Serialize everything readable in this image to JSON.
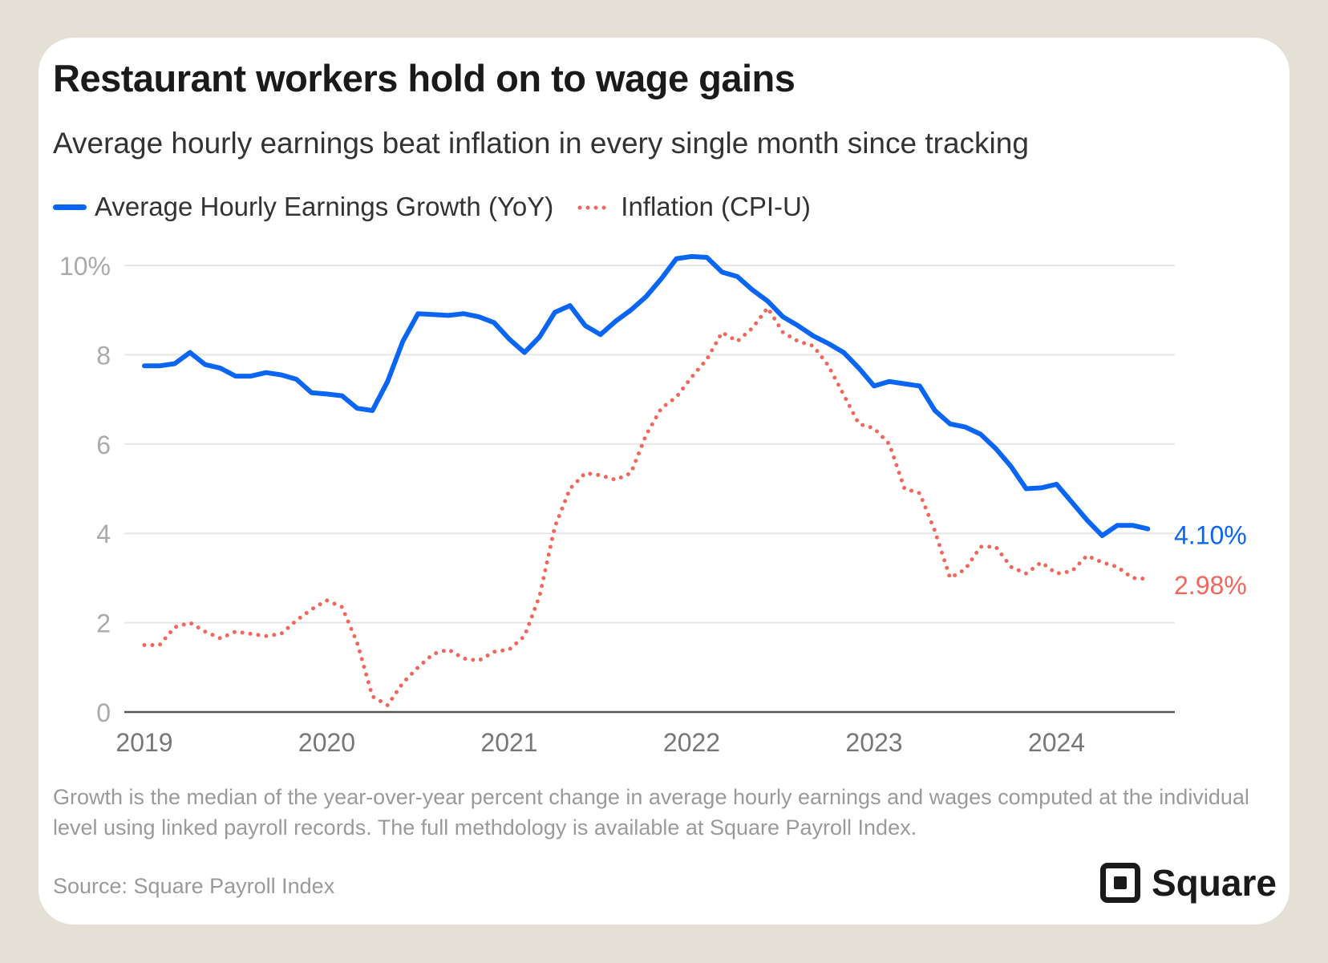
{
  "header": {
    "title": "Restaurant workers hold on to wage gains",
    "subtitle": "Average hourly earnings beat inflation in every single month since tracking"
  },
  "legend": {
    "earnings_label": "Average Hourly Earnings Growth (YoY)",
    "inflation_label": "Inflation (CPI-U)"
  },
  "colors": {
    "earnings": "#0a66f2",
    "inflation": "#f2665c",
    "grid": "#e6e6e6",
    "axis": "#555555",
    "tick_text": "#aaaaaa",
    "year_text": "#777777"
  },
  "chart_data": {
    "type": "line",
    "ylim": [
      0,
      10
    ],
    "y_ticks": [
      0,
      2,
      4,
      6,
      8,
      10
    ],
    "y_tick_labels": [
      "0",
      "2",
      "4",
      "6",
      "8",
      "10%"
    ],
    "x_years": [
      "2019",
      "2020",
      "2021",
      "2022",
      "2023",
      "2024"
    ],
    "x_start": "2019-01",
    "x_end": "2024-07",
    "series": [
      {
        "name": "Average Hourly Earnings Growth (YoY)",
        "style": "solid",
        "end_label": "4.10%",
        "x": [
          "2019-01",
          "2019-02",
          "2019-03",
          "2019-04",
          "2019-05",
          "2019-06",
          "2019-07",
          "2019-08",
          "2019-09",
          "2019-10",
          "2019-11",
          "2019-12",
          "2020-01",
          "2020-02",
          "2020-03",
          "2020-04",
          "2020-05",
          "2020-06",
          "2020-07",
          "2020-08",
          "2020-09",
          "2020-10",
          "2020-11",
          "2020-12",
          "2021-01",
          "2021-02",
          "2021-03",
          "2021-04",
          "2021-05",
          "2021-06",
          "2021-07",
          "2021-08",
          "2021-09",
          "2021-10",
          "2021-11",
          "2021-12",
          "2022-01",
          "2022-02",
          "2022-03",
          "2022-04",
          "2022-05",
          "2022-06",
          "2022-07",
          "2022-08",
          "2022-09",
          "2022-10",
          "2022-11",
          "2022-12",
          "2023-01",
          "2023-02",
          "2023-03",
          "2023-04",
          "2023-05",
          "2023-06",
          "2023-07",
          "2023-08",
          "2023-09",
          "2023-10",
          "2023-11",
          "2023-12",
          "2024-01",
          "2024-02",
          "2024-03",
          "2024-04",
          "2024-05",
          "2024-06",
          "2024-07"
        ],
        "values": [
          7.75,
          7.75,
          7.8,
          8.05,
          7.78,
          7.7,
          7.52,
          7.52,
          7.6,
          7.55,
          7.45,
          7.15,
          7.12,
          7.08,
          6.8,
          6.75,
          7.4,
          8.3,
          8.92,
          8.9,
          8.88,
          8.92,
          8.85,
          8.72,
          8.35,
          8.05,
          8.4,
          8.95,
          9.1,
          8.65,
          8.45,
          8.75,
          9.0,
          9.3,
          9.7,
          10.15,
          10.2,
          10.18,
          9.85,
          9.75,
          9.45,
          9.2,
          8.85,
          8.65,
          8.42,
          8.25,
          8.05,
          7.7,
          7.3,
          7.4,
          7.35,
          7.3,
          6.75,
          6.45,
          6.38,
          6.22,
          5.9,
          5.5,
          5.0,
          5.02,
          5.1,
          4.7,
          4.3,
          3.95,
          4.18,
          4.18,
          4.1
        ]
      },
      {
        "name": "Inflation (CPI-U)",
        "style": "dotted",
        "end_label": "2.98%",
        "x": [
          "2019-01",
          "2019-02",
          "2019-03",
          "2019-04",
          "2019-05",
          "2019-06",
          "2019-07",
          "2019-08",
          "2019-09",
          "2019-10",
          "2019-11",
          "2019-12",
          "2020-01",
          "2020-02",
          "2020-03",
          "2020-04",
          "2020-05",
          "2020-06",
          "2020-07",
          "2020-08",
          "2020-09",
          "2020-10",
          "2020-11",
          "2020-12",
          "2021-01",
          "2021-02",
          "2021-03",
          "2021-04",
          "2021-05",
          "2021-06",
          "2021-07",
          "2021-08",
          "2021-09",
          "2021-10",
          "2021-11",
          "2021-12",
          "2022-01",
          "2022-02",
          "2022-03",
          "2022-04",
          "2022-05",
          "2022-06",
          "2022-07",
          "2022-08",
          "2022-09",
          "2022-10",
          "2022-11",
          "2022-12",
          "2023-01",
          "2023-02",
          "2023-03",
          "2023-04",
          "2023-05",
          "2023-06",
          "2023-07",
          "2023-08",
          "2023-09",
          "2023-10",
          "2023-11",
          "2023-12",
          "2024-01",
          "2024-02",
          "2024-03",
          "2024-04",
          "2024-05",
          "2024-06",
          "2024-07"
        ],
        "values": [
          1.5,
          1.5,
          1.9,
          2.0,
          1.8,
          1.65,
          1.8,
          1.75,
          1.7,
          1.75,
          2.05,
          2.3,
          2.5,
          2.35,
          1.55,
          0.35,
          0.15,
          0.65,
          1.0,
          1.3,
          1.4,
          1.2,
          1.15,
          1.35,
          1.4,
          1.7,
          2.6,
          4.15,
          5.0,
          5.35,
          5.3,
          5.2,
          5.35,
          6.2,
          6.8,
          7.05,
          7.5,
          7.9,
          8.5,
          8.3,
          8.6,
          9.05,
          8.5,
          8.3,
          8.2,
          7.75,
          7.1,
          6.45,
          6.35,
          6.0,
          5.0,
          4.9,
          4.05,
          3.0,
          3.2,
          3.7,
          3.7,
          3.25,
          3.1,
          3.35,
          3.1,
          3.15,
          3.5,
          3.35,
          3.25,
          3.0,
          2.98
        ]
      }
    ]
  },
  "footer": {
    "note": "Growth is the median of the year-over-year percent change in average hourly earnings and wages computed at the individual level using linked payroll records. The full methdology is available at Square Payroll Index.",
    "source": "Source: Square Payroll Index",
    "logo_text": "Square"
  }
}
